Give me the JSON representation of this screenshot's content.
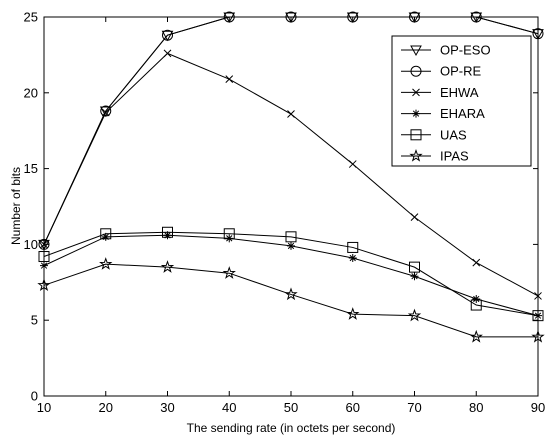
{
  "chart_data": {
    "type": "line",
    "title": "",
    "xlabel": "The sending rate (in octets per second)",
    "ylabel": "Number of bits",
    "x": [
      10,
      20,
      30,
      40,
      50,
      60,
      70,
      80,
      90
    ],
    "xlim": [
      10,
      90
    ],
    "ylim": [
      0,
      25
    ],
    "xticks": [
      "10",
      "20",
      "30",
      "40",
      "50",
      "60",
      "70",
      "80",
      "90"
    ],
    "yticks": [
      "0",
      "5",
      "10",
      "15",
      "20",
      "25"
    ],
    "grid": false,
    "legend_position": "top-right",
    "line_color": "#000000",
    "series": [
      {
        "name": "OP-ESO",
        "marker": "triangle-down",
        "values": [
          10,
          18.8,
          23.8,
          25,
          25,
          25,
          25,
          25,
          23.9
        ]
      },
      {
        "name": "OP-RE",
        "marker": "circle",
        "values": [
          10,
          18.8,
          23.8,
          25,
          25,
          25,
          25,
          25,
          23.9
        ]
      },
      {
        "name": "EHWA",
        "marker": "x",
        "values": [
          10,
          18.7,
          22.6,
          20.9,
          18.6,
          15.3,
          11.8,
          8.8,
          6.6
        ]
      },
      {
        "name": "EHARA",
        "marker": "asterisk",
        "values": [
          8.6,
          10.5,
          10.6,
          10.4,
          9.9,
          9.1,
          7.9,
          6.4,
          5.3
        ]
      },
      {
        "name": "UAS",
        "marker": "square",
        "values": [
          9.2,
          10.7,
          10.8,
          10.7,
          10.5,
          9.8,
          8.5,
          6.0,
          5.3
        ]
      },
      {
        "name": "IPAS",
        "marker": "pentagram",
        "values": [
          7.3,
          8.7,
          8.5,
          8.1,
          6.7,
          5.4,
          5.3,
          3.9,
          3.9
        ]
      }
    ]
  }
}
